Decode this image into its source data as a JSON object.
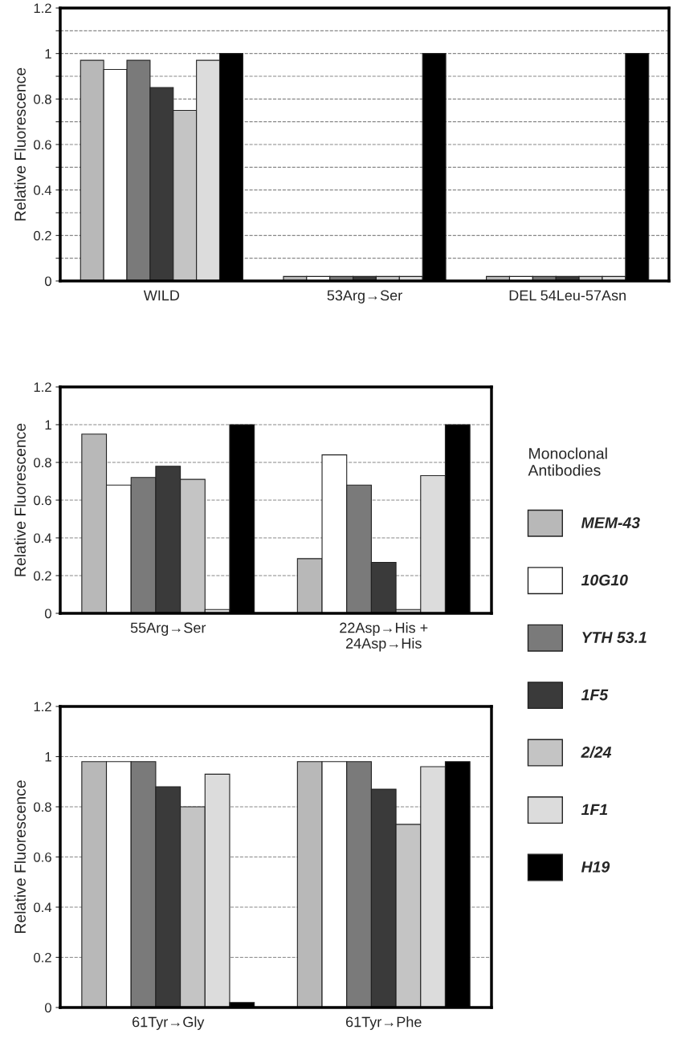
{
  "chart_data": [
    {
      "type": "bar",
      "ylabel": "Relative Fluorescence",
      "categories": [
        "WILD",
        "53Arg→Ser",
        "DEL 54Leu-57Asn"
      ],
      "ylim": [
        0,
        1.2
      ],
      "yticks": [
        0,
        {
          "value": 0.1,
          "label": null
        },
        0.2,
        {
          "value": 0.3,
          "label": null
        },
        0.4,
        {
          "value": 0.5,
          "label": null
        },
        0.6,
        {
          "value": 0.7,
          "label": null
        },
        0.8,
        {
          "value": 0.9,
          "label": null
        },
        1,
        {
          "value": 1.1,
          "label": null
        },
        1.2
      ],
      "grid": "y",
      "series": [
        {
          "color": "#b8b8b8",
          "values": [
            0.97,
            0.02,
            0.02
          ]
        },
        {
          "color": "#ffffff",
          "values": [
            0.93,
            0.02,
            0.02
          ]
        },
        {
          "color": "#7a7a7a",
          "values": [
            0.97,
            0.02,
            0.02
          ]
        },
        {
          "color": "#3a3a3a",
          "values": [
            0.85,
            0.02,
            0.02
          ]
        },
        {
          "color": "#c4c4c4",
          "values": [
            0.75,
            0.02,
            0.02
          ]
        },
        {
          "color": "#dcdcdc",
          "values": [
            0.97,
            0.02,
            0.02
          ]
        },
        {
          "color": "#000000",
          "values": [
            1.0,
            1.0,
            1.0
          ]
        }
      ]
    },
    {
      "type": "bar",
      "ylabel": "Relative Fluorescence",
      "categories": [
        "55Arg→Ser",
        "22Asp→His +\n24Asp→His"
      ],
      "ylim": [
        0,
        1.2
      ],
      "yticks": [
        0,
        0.2,
        0.4,
        0.6,
        0.8,
        1,
        1.2
      ],
      "grid": "y",
      "legend": "right",
      "legend_title": "Monoclonal\nAntibodies",
      "series": [
        {
          "name": "MEM-43",
          "color": "#b8b8b8",
          "values": [
            0.95,
            0.29
          ]
        },
        {
          "name": "10G10",
          "color": "#ffffff",
          "values": [
            0.68,
            0.84
          ]
        },
        {
          "name": "YTH 53.1",
          "color": "#7a7a7a",
          "values": [
            0.72,
            0.68
          ]
        },
        {
          "name": "1F5",
          "color": "#3a3a3a",
          "values": [
            0.78,
            0.27
          ]
        },
        {
          "name": "2/24",
          "color": "#c4c4c4",
          "values": [
            0.71,
            0.02
          ]
        },
        {
          "name": "1F1",
          "color": "#dcdcdc",
          "values": [
            0.02,
            0.73
          ]
        },
        {
          "name": "H19",
          "color": "#000000",
          "values": [
            1.0,
            1.0
          ]
        }
      ]
    },
    {
      "type": "bar",
      "ylabel": "Relative Fluorescence",
      "categories": [
        "61Tyr→Gly",
        "61Tyr→Phe"
      ],
      "ylim": [
        0,
        1.2
      ],
      "yticks": [
        0,
        0.2,
        0.4,
        0.6,
        0.8,
        1,
        1.2
      ],
      "grid": "y",
      "series": [
        {
          "color": "#b8b8b8",
          "values": [
            0.98,
            0.98
          ]
        },
        {
          "color": "#ffffff",
          "values": [
            0.98,
            0.98
          ]
        },
        {
          "color": "#7a7a7a",
          "values": [
            0.98,
            0.98
          ]
        },
        {
          "color": "#3a3a3a",
          "values": [
            0.88,
            0.87
          ]
        },
        {
          "color": "#c4c4c4",
          "values": [
            0.8,
            0.73
          ]
        },
        {
          "color": "#dcdcdc",
          "values": [
            0.93,
            0.96
          ]
        },
        {
          "color": "#000000",
          "values": [
            0.02,
            0.98
          ]
        }
      ]
    }
  ]
}
